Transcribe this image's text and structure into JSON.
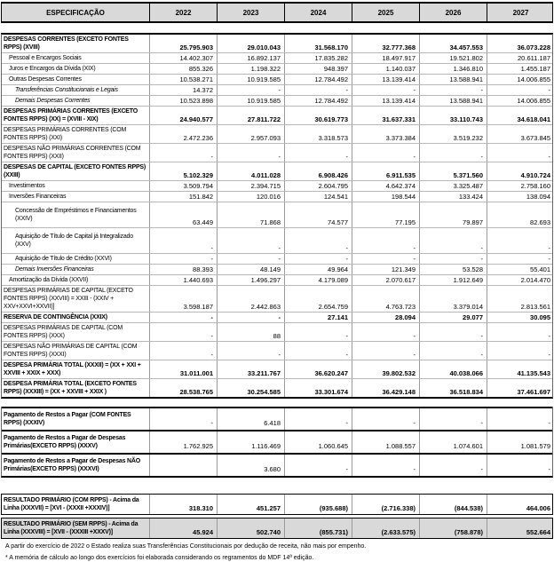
{
  "colors": {
    "hdr": "#d9d9d9",
    "shade": "#d9d9d9"
  },
  "table": {
    "header": {
      "spec": "ESPECIFICAÇÃO",
      "years": [
        "2022",
        "2023",
        "2024",
        "2025",
        "2026",
        "2027"
      ]
    },
    "blocks": [
      {
        "name": "despesas",
        "rows": [
          {
            "label": "DESPESAS CORRENTES (EXCETO FONTES RPPS) (XVIII)",
            "bold": true,
            "boldValues": true,
            "values": [
              "25.795.903",
              "29.010.043",
              "31.568.170",
              "32.777.368",
              "34.457.553",
              "36.073.228"
            ]
          },
          {
            "label": "Pessoal e Encargos Sociais",
            "indent": 1,
            "values": [
              "14.402.307",
              "16.892.137",
              "17.835.282",
              "18.497.917",
              "19.521.802",
              "20.611.187"
            ]
          },
          {
            "label": "Juros e Encargos da Dívida (XIX)",
            "indent": 1,
            "values": [
              "855.326",
              "1.198.322",
              "948.397",
              "1.140.037",
              "1.346.810",
              "1.455.187"
            ]
          },
          {
            "label": "Outras Despesas Correntes",
            "indent": 1,
            "values": [
              "10.538.271",
              "10.919.585",
              "12.784.492",
              "13.139.414",
              "13.588.941",
              "14.006.855"
            ]
          },
          {
            "label": "Transferências Constitucionais e Legais",
            "indent": 2,
            "italic": true,
            "values": [
              "14.372",
              "-",
              "-",
              "-",
              "-",
              "-"
            ]
          },
          {
            "label": "Demais Despesas Correntes",
            "indent": 2,
            "italic": true,
            "values": [
              "10.523.898",
              "10.919.585",
              "12.784.492",
              "13.139.414",
              "13.588.941",
              "14.006.855"
            ]
          },
          {
            "label": "DESPESAS PRIMÁRIAS CORRENTES (EXCETO FONTES RPPS) (XX) = (XVIII - XIX)",
            "bold": true,
            "boldValues": true,
            "values": [
              "24.940.577",
              "27.811.722",
              "30.619.773",
              "31.637.331",
              "33.110.743",
              "34.618.041"
            ]
          },
          {
            "label": "DESPESAS PRIMÁRIAS CORRENTES (COM FONTES RPPS) (XXI)",
            "values": [
              "2.472.236",
              "2.957.093",
              "3.318.573",
              "3.373.384",
              "3.519.232",
              "3.673.845"
            ]
          },
          {
            "label": "DESPESAS NÃO PRIMÁRIAS CORRENTES (COM FONTES RPPS) (XXII)",
            "values": [
              "-",
              "-",
              "-",
              "-",
              "-",
              "-"
            ]
          },
          {
            "label": "DESPESAS DE CAPITAL (EXCETO FONTES RPPS) (XXIII)",
            "bold": true,
            "boldValues": true,
            "values": [
              "5.102.329",
              "4.011.028",
              "6.908.426",
              "6.911.535",
              "5.371.560",
              "4.910.724"
            ]
          },
          {
            "label": "Investimentos",
            "indent": 1,
            "values": [
              "3.509.794",
              "2.394.715",
              "2.604.795",
              "4.642.374",
              "3.325.487",
              "2.758.160"
            ]
          },
          {
            "label": "Inversões Financeiras",
            "indent": 1,
            "values": [
              "151.842",
              "120.016",
              "124.541",
              "198.544",
              "133.424",
              "138.094"
            ]
          },
          {
            "label": "Concessão de Empréstimos e Financiamentos (XXIV)",
            "indent": 2,
            "tall": true,
            "values": [
              "63.449",
              "71.868",
              "74.577",
              "77.195",
              "79.897",
              "82.693"
            ]
          },
          {
            "label": "Aquisição de Título de Capital já Integralizado (XXV)",
            "indent": 2,
            "tall": true,
            "values": [
              "-",
              "-",
              "-",
              "-",
              "-",
              "-"
            ]
          },
          {
            "label": "Aquisição de Título de Crédito (XXVI)",
            "indent": 2,
            "values": [
              "-",
              "-",
              "-",
              "-",
              "-",
              "-"
            ]
          },
          {
            "label": "Demais Inversões Financeiras",
            "indent": 2,
            "italic": true,
            "values": [
              "88.393",
              "48.149",
              "49.964",
              "121.349",
              "53.528",
              "55.401"
            ]
          },
          {
            "label": "Amortização da Dívida (XXVII)",
            "indent": 1,
            "values": [
              "1.440.693",
              "1.496.297",
              "4.179.089",
              "2.070.617",
              "1.912.649",
              "2.014.470"
            ]
          },
          {
            "label": "DESPESAS PRIMÁRIAS DE CAPITAL (EXCETO FONTES RPPS) (XXVIII) = XXIII - (XXIV + XXV+XXVI+XXVII)]",
            "values": [
              "3.598.187",
              "2.442.863",
              "2.654.759",
              "4.763.723",
              "3.379.014",
              "2.813.561"
            ]
          },
          {
            "label": "RESERVA DE CONTINGÊNCIA (XXIX)",
            "bold": true,
            "boldValues": true,
            "values": [
              "-",
              "-",
              "27.141",
              "28.094",
              "29.077",
              "30.095"
            ]
          },
          {
            "label": "DESPESAS PRIMÁRIAS DE CAPITAL (COM FONTES RPPS) (XXX)",
            "values": [
              "-",
              "88",
              "-",
              "-",
              "-",
              "-"
            ]
          },
          {
            "label": "DESPESAS NÃO PRIMÁRIAS DE CAPITAL (COM FONTES RPPS) (XXXI)",
            "values": [
              "-",
              "-",
              "-",
              "-",
              "-",
              "-"
            ]
          },
          {
            "label": "DESPESA  PRIMÁRIA TOTAL (XXXII) = (XX + XXI + XXVIII + XXIX + XXX)",
            "bold": true,
            "boldValues": true,
            "values": [
              "31.011.001",
              "33.211.767",
              "36.620.247",
              "39.802.532",
              "40.038.066",
              "41.135.543"
            ]
          },
          {
            "label": "DESPESA  PRIMÁRIA TOTAL (EXCETO FONTES RPPS) (XXXIII) = (XX + XXVIII + XXIX )",
            "bold": true,
            "boldValues": true,
            "values": [
              "28.538.765",
              "30.254.585",
              "33.301.674",
              "36.429.148",
              "36.518.834",
              "37.461.697"
            ]
          }
        ]
      },
      {
        "name": "restos-a-pagar",
        "rows": [
          {
            "label": "Pagamento de Restos a Pagar (COM FONTES RPPS)  (XXXIV)",
            "bold": true,
            "values": [
              "-",
              "6.418",
              "-",
              "-",
              "-",
              "-"
            ]
          },
          {
            "label": "Pagamento de Restos a Pagar de Despesas Primárias(EXCETO RPPS) (XXXV)",
            "bold": true,
            "values": [
              "1.762.925",
              "1.116.469",
              "1.060.645",
              "1.088.557",
              "1.074.601",
              "1.081.579"
            ]
          },
          {
            "label": "Pagamento de Restos a Pagar de Despesas NÃO Primárias(EXCETO RPPS) (XXXVI)",
            "bold": true,
            "values": [
              "",
              "3.680",
              "-",
              "-",
              "-",
              "-"
            ]
          }
        ]
      },
      {
        "name": "resultado-primario",
        "rows": [
          {
            "label": "RESULTADO PRIMÁRIO (COM RPPS) - Acima da Linha (XXXVII) = [XVI - (XXXII +XXXIV)]",
            "bold": true,
            "boldValues": true,
            "values": [
              "318.310",
              "451.257",
              "(935.688)",
              "(2.716.338)",
              "(844.538)",
              "464.006"
            ]
          },
          {
            "label": "RESULTADO PRIMÁRIO (SEM RPPS) - Acima da Linha (XXXVIII) = [XVII - (XXXIII +XXXV)]",
            "bold": true,
            "boldValues": true,
            "shaded": true,
            "values": [
              "45.924",
              "502.740",
              "(855.731)",
              "(2.633.575)",
              "(758.878)",
              "552.664"
            ]
          }
        ]
      }
    ]
  },
  "footnotes": [
    "A partir do exercício de 2022 o Estado realiza suas Transferências Constitucionais por dedução de receita, não mais por empenho.",
    "* A memória de cálculo ao longo dos exercícios foi elaborada considerando os regramentos do MDF 14ª edição."
  ]
}
